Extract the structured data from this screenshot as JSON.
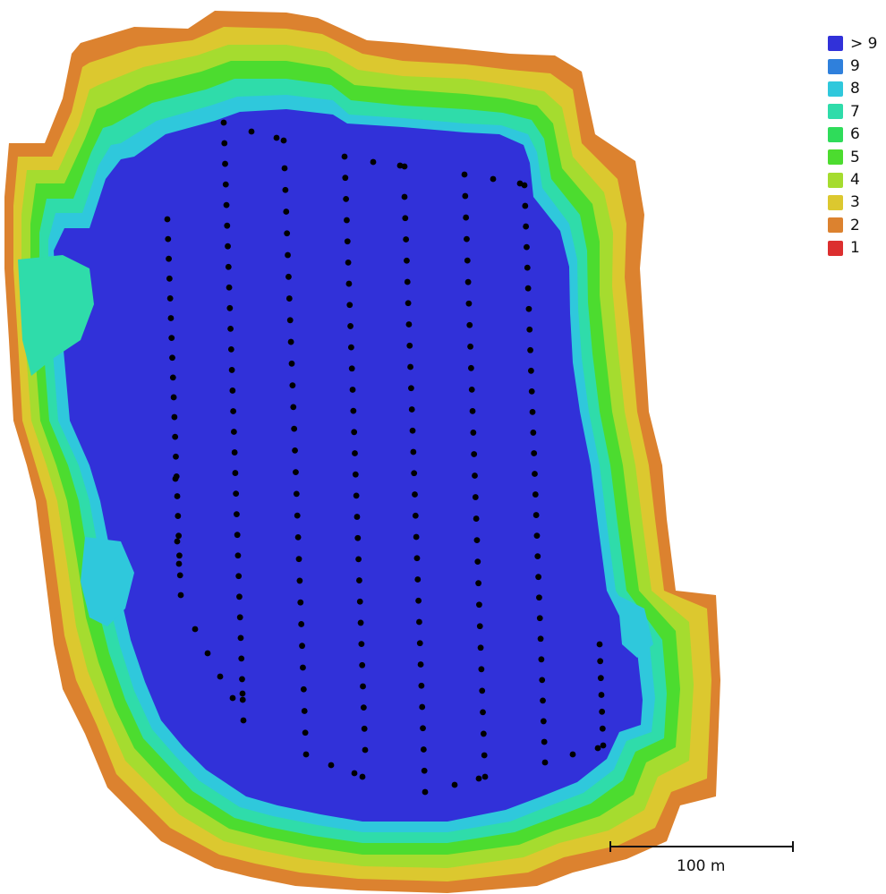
{
  "legend": {
    "items": [
      {
        "label": "> 9",
        "color": "#3131d9"
      },
      {
        "label": "9",
        "color": "#2f80dc"
      },
      {
        "label": "8",
        "color": "#2fc8dc"
      },
      {
        "label": "7",
        "color": "#2fdcaa"
      },
      {
        "label": "6",
        "color": "#2fdc5a"
      },
      {
        "label": "5",
        "color": "#4cdc2f"
      },
      {
        "label": "4",
        "color": "#a5dc2f"
      },
      {
        "label": "3",
        "color": "#dcc82f"
      },
      {
        "label": "2",
        "color": "#dc822f"
      },
      {
        "label": "1",
        "color": "#dc2f2f"
      }
    ]
  },
  "scale_bar": {
    "label": "100 m"
  },
  "colors": {
    "overlap_high": "#3131d9",
    "camera_marker": "#000000",
    "background": "#ffffff"
  }
}
